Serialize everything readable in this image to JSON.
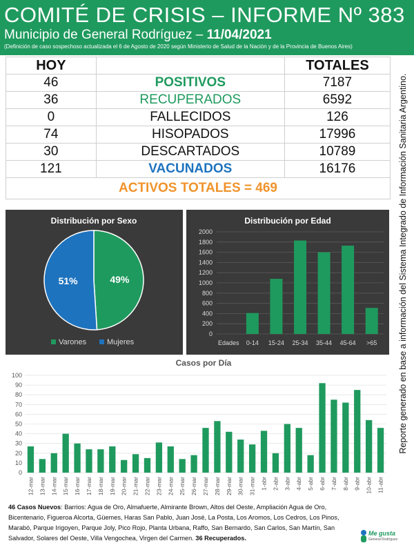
{
  "header": {
    "title": "COMITÉ DE CRISIS – INFORME Nº 383",
    "subtitle_prefix": "Municipio de General Rodríguez – ",
    "subtitle_date": "11/04/2021",
    "note": "(Definición de caso sospechoso actualizada el 6 de Agosto de 2020 según Ministerio de Salud de la Nación y de la Provincia de Buenos Aires)"
  },
  "summary": {
    "hoy_label": "HOY",
    "totales_label": "TOTALES",
    "rows": [
      {
        "hoy": "46",
        "label": "POSITIVOS",
        "total": "7187"
      },
      {
        "hoy": "36",
        "label": "RECUPERADOS",
        "total": "6592"
      },
      {
        "hoy": "0",
        "label": "FALLECIDOS",
        "total": "126"
      },
      {
        "hoy": "74",
        "label": "HISOPADOS",
        "total": "17996"
      },
      {
        "hoy": "30",
        "label": "DESCARTADOS",
        "total": "10789"
      },
      {
        "hoy": "121",
        "label": "VACUNADOS",
        "total": "16176"
      }
    ],
    "activos": "ACTIVOS TOTALES = 469"
  },
  "side_note": "Reporte generado en base a información del Sistema Integrado de Información Sanitaria Argentino.",
  "colors": {
    "green": "#1f9a5e",
    "blue": "#1e73be",
    "orange": "#f0932b",
    "panel": "#3a3a3a"
  },
  "chart_data": [
    {
      "type": "pie",
      "title": "Distribución por Sexo",
      "labels": [
        "Varones",
        "Mujeres"
      ],
      "values": [
        49,
        51
      ],
      "value_labels": [
        "49%",
        "51%"
      ],
      "colors": [
        "#1f9a5e",
        "#1e73be"
      ],
      "legend": "bottom"
    },
    {
      "type": "bar",
      "title": "Distribución por Edad",
      "xlabel": "Edades",
      "categories": [
        "0-14",
        "15-24",
        "25-34",
        "35-44",
        "45-64",
        ">65"
      ],
      "values": [
        410,
        1080,
        1830,
        1600,
        1730,
        510
      ],
      "ylim": [
        0,
        2000
      ],
      "yticks": [
        0,
        200,
        400,
        600,
        800,
        1000,
        1200,
        1400,
        1600,
        1800,
        2000
      ],
      "grid": true
    },
    {
      "type": "bar",
      "title": "Casos por Día",
      "categories": [
        "12-mar",
        "13-mar",
        "14-mar",
        "15-mar",
        "16-mar",
        "17-mar",
        "18-mar",
        "19-mar",
        "20-mar",
        "21-mar",
        "22-mar",
        "23-mar",
        "24-mar",
        "25-mar",
        "26-mar",
        "27-mar",
        "28-mar",
        "29-mar",
        "30-mar",
        "31-mar",
        "1-abr",
        "2-abr",
        "3-abr",
        "4-abr",
        "5-abr",
        "6-abr",
        "7-abr",
        "8-abr",
        "9-abr",
        "10-abr",
        "11-abr"
      ],
      "values": [
        27,
        14,
        20,
        40,
        30,
        24,
        24,
        27,
        13,
        19,
        15,
        31,
        27,
        14,
        18,
        46,
        53,
        42,
        34,
        29,
        43,
        20,
        50,
        46,
        18,
        92,
        75,
        72,
        85,
        54,
        46
      ],
      "ylim": [
        0,
        100
      ],
      "yticks": [
        0,
        10,
        20,
        30,
        40,
        50,
        60,
        70,
        80,
        90,
        100
      ],
      "grid": true
    }
  ],
  "footer": {
    "lead": "46 Casos Nuevos",
    "body": ": Barrios: Agua de Oro, Almafuerte, Almirante Brown, Altos del Oeste, Ampliación Agua de Oro, Bicentenario, Figueroa Alcorta, Güemes, Haras San Pablo, Juan José, La Posta, Los Aromos, Los Cedros, Los Pinos, Marabó, Parque Irigoyen, Parque Joly, Pico Rojo, Planta Urbana, Raffo, San Bernardo, San Carlos, San Martín, San Salvador, Solares del Oeste, Villa Vengochea, Virgen del Carmen. ",
    "tail": "36 Recuperados."
  },
  "logo": {
    "text": "Me gusta",
    "sub": "General Rodríguez"
  }
}
